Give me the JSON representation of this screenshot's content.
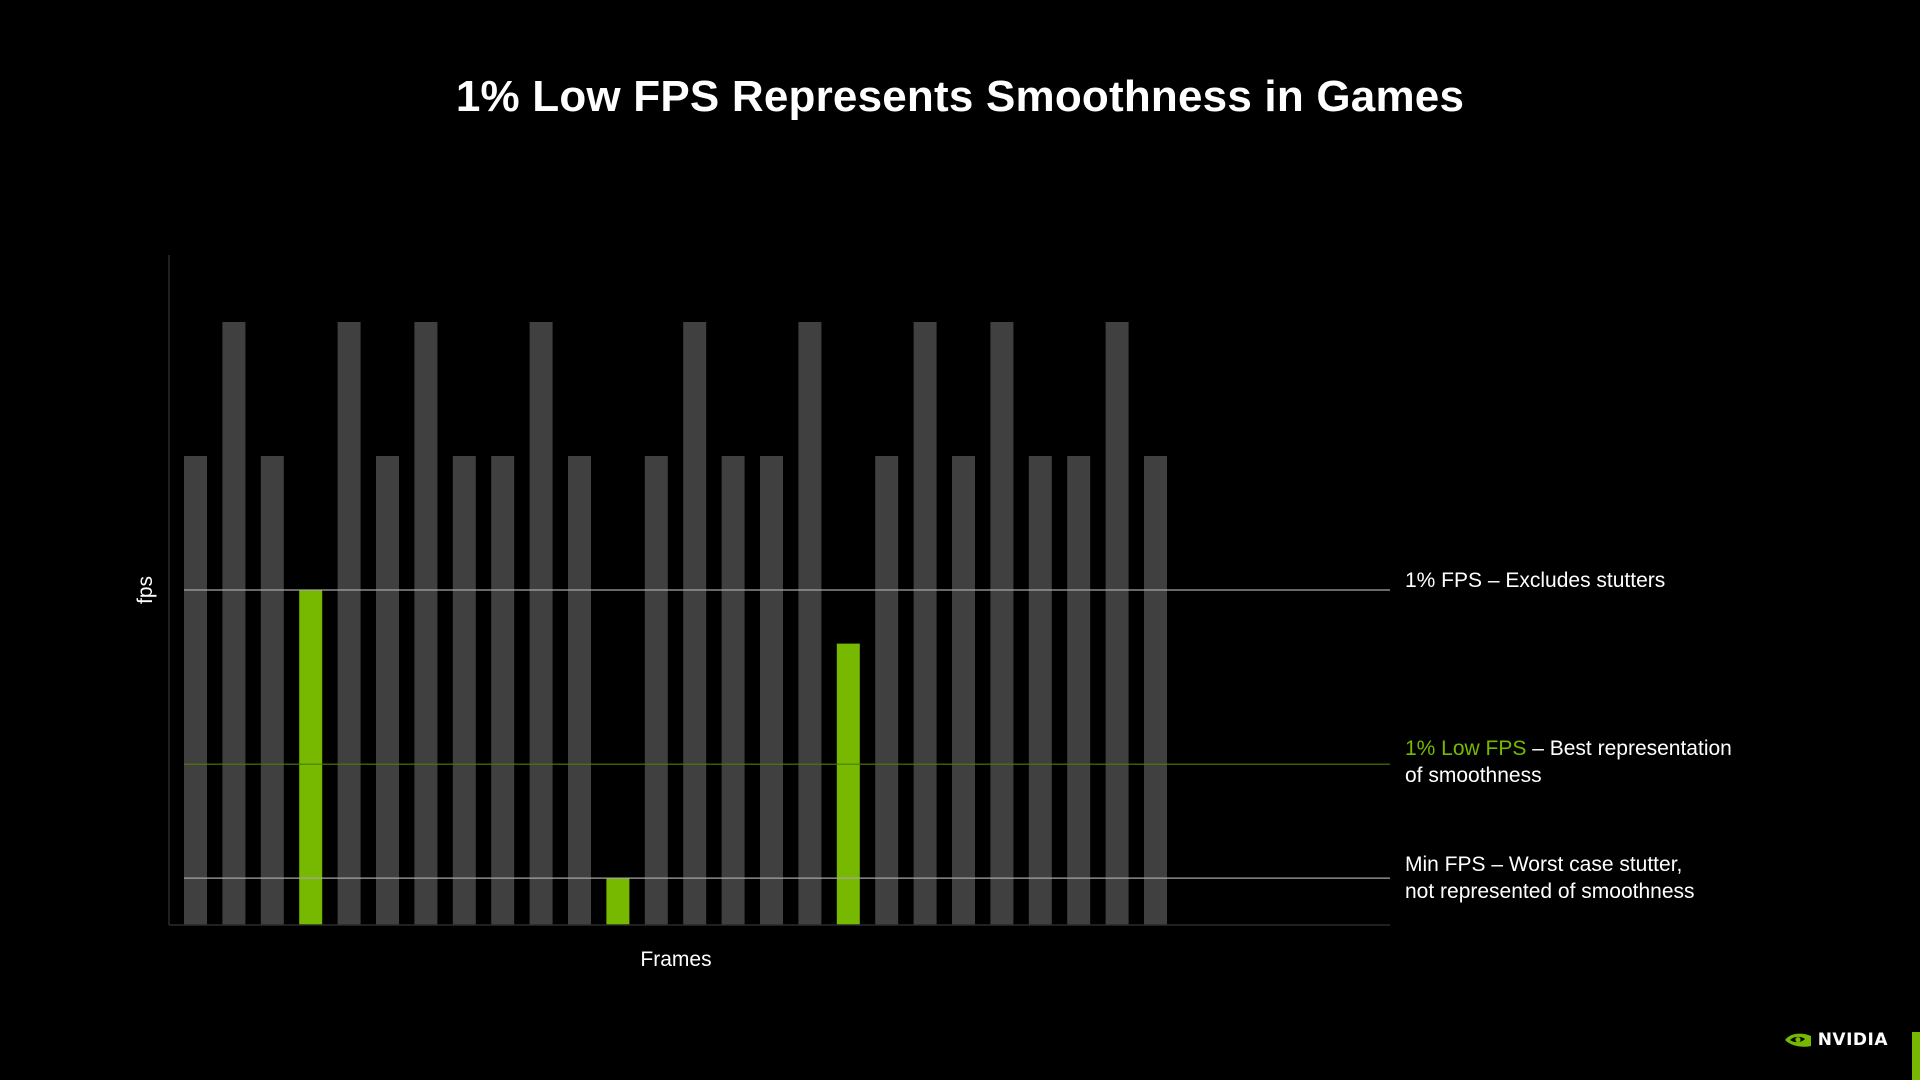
{
  "slide": {
    "title": "1% Low FPS Represents Smoothness in Games"
  },
  "colors": {
    "background": "#000000",
    "bar": "#404040",
    "highlight": "#76b900",
    "gridline_white": "#a6a6a6",
    "gridline_green": "#4f7a06"
  },
  "chart_data": {
    "type": "bar",
    "xlabel": "Frames",
    "ylabel": "fps",
    "ylim": [
      0,
      100
    ],
    "grid": false,
    "values": [
      70,
      90,
      70,
      50,
      90,
      70,
      90,
      70,
      70,
      90,
      70,
      7,
      70,
      90,
      70,
      70,
      90,
      42,
      70,
      90,
      70,
      90,
      70,
      70,
      90,
      70
    ],
    "highlight": [
      false,
      false,
      false,
      true,
      false,
      false,
      false,
      false,
      false,
      false,
      false,
      true,
      false,
      false,
      false,
      false,
      false,
      true,
      false,
      false,
      false,
      false,
      false,
      false,
      false,
      false
    ],
    "reference_lines": [
      {
        "value": 50,
        "color": "#a6a6a6",
        "label": "1% FPS – Excludes stutters",
        "label_accent": ""
      },
      {
        "value": 24,
        "color": "#4f7a06",
        "label": "– Best representation of smoothness",
        "label_accent": "1% Low FPS"
      },
      {
        "value": 7,
        "color": "#a6a6a6",
        "label": "Min FPS – Worst case stutter, not represented of smoothness",
        "label_accent": ""
      }
    ]
  },
  "annotations": {
    "one_pct_fps": "1% FPS – Excludes stutters",
    "one_pct_low_accent": "1% Low FPS",
    "one_pct_low_rest_line1": " – Best representation",
    "one_pct_low_rest_line2": "of smoothness",
    "min_fps_line1": "Min FPS – Worst case stutter,",
    "min_fps_line2": "not represented of smoothness"
  },
  "brand": {
    "name": "NVIDIA",
    "icon": "nvidia-eye-icon"
  }
}
